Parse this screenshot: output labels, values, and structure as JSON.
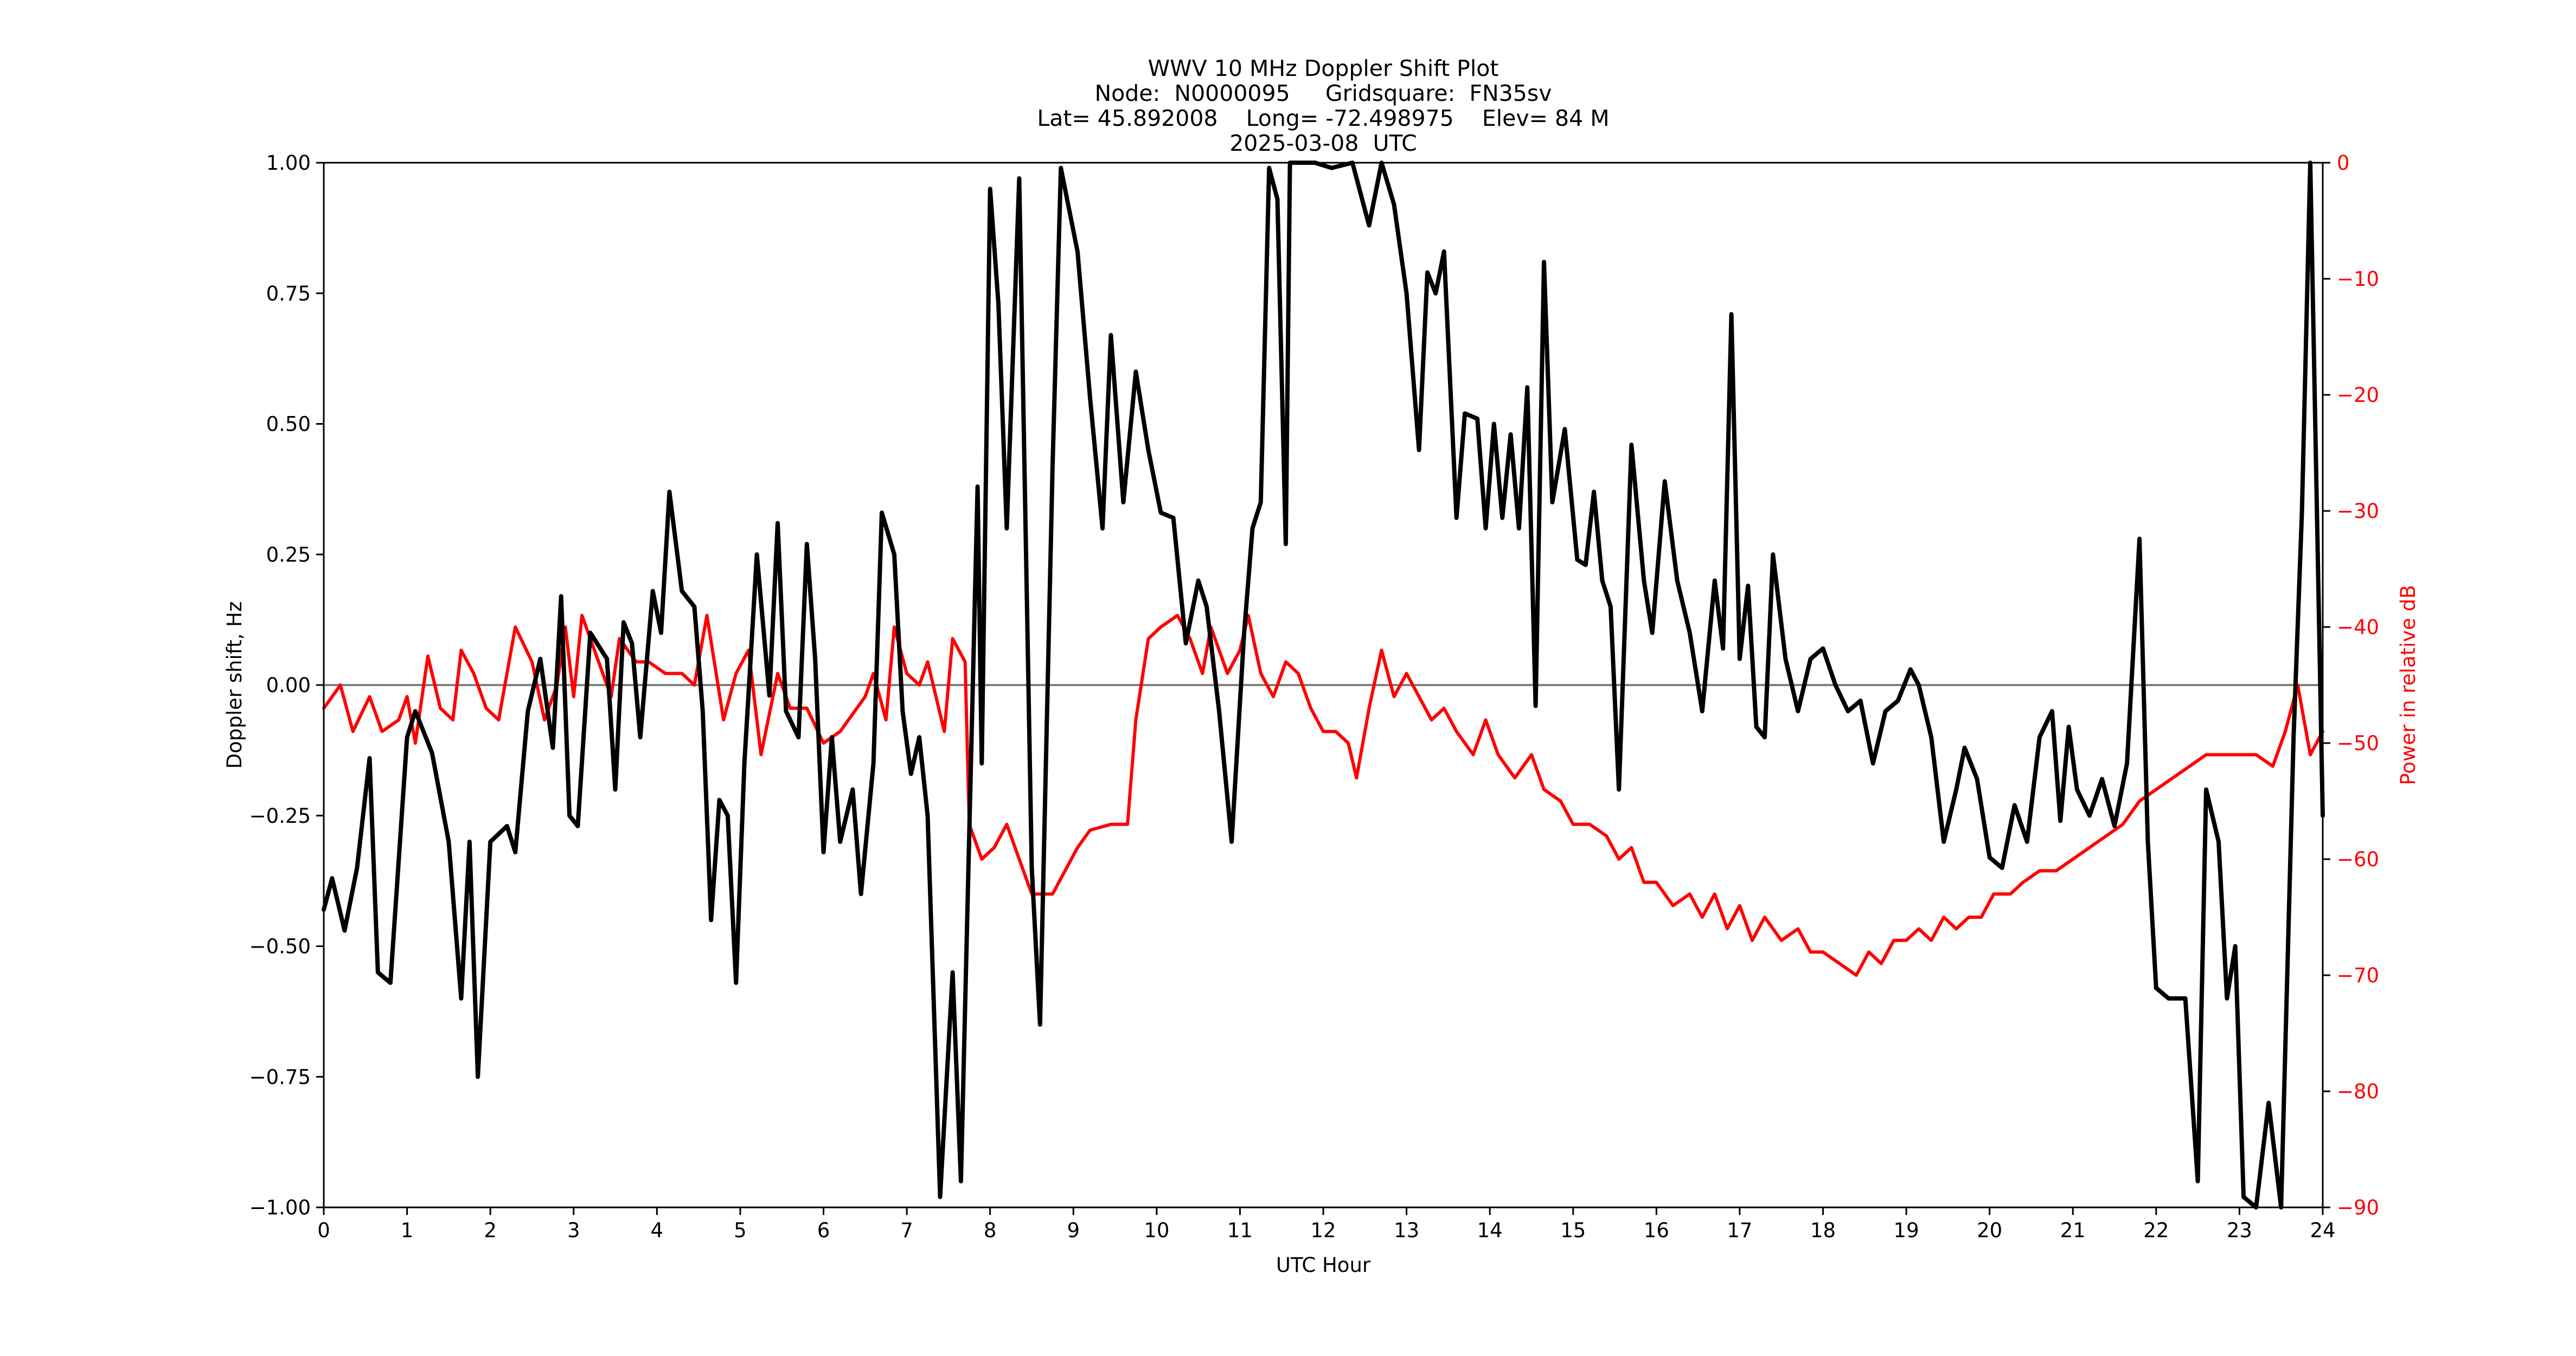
{
  "title": {
    "line1": "WWV 10 MHz Doppler Shift Plot",
    "line2": "Node:  N0000095     Gridsquare:  FN35sv",
    "line3": "Lat= 45.892008    Long= -72.498975    Elev= 84 M",
    "line4": "2025-03-08  UTC"
  },
  "axes": {
    "xlabel": "UTC Hour",
    "ylabel_left": "Doppler shift, Hz",
    "ylabel_right": "Power in relative dB",
    "x_ticks": [
      "0",
      "1",
      "2",
      "3",
      "4",
      "5",
      "6",
      "7",
      "8",
      "9",
      "10",
      "11",
      "12",
      "13",
      "14",
      "15",
      "16",
      "17",
      "18",
      "19",
      "20",
      "21",
      "22",
      "23",
      "24"
    ],
    "y_left_ticks": [
      "1.00",
      "0.75",
      "0.50",
      "0.25",
      "0.00",
      "−0.25",
      "−0.50",
      "−0.75",
      "−1.00"
    ],
    "y_right_ticks": [
      "0",
      "−10",
      "−20",
      "−30",
      "−40",
      "−50",
      "−60",
      "−70",
      "−80",
      "−90"
    ]
  },
  "colors": {
    "doppler": "#000000",
    "power": "#ff0000",
    "zero_line": "#808080",
    "right_axis_text": "#ff0000"
  },
  "chart_data": {
    "type": "line",
    "title": "WWV 10 MHz Doppler Shift Plot",
    "subtitle": "Node:  N0000095     Gridsquare:  FN35sv | Lat= 45.892008    Long= -72.498975    Elev= 84 M | 2025-03-08  UTC",
    "xlabel": "UTC Hour",
    "ylabel": "Doppler shift, Hz",
    "y2label": "Power in relative dB",
    "xlim": [
      0,
      24
    ],
    "ylim": [
      -1.0,
      1.0
    ],
    "y2lim": [
      -90,
      0
    ],
    "grid": false,
    "reference_line": {
      "y": 0.0,
      "color": "#808080"
    },
    "series": [
      {
        "name": "Doppler shift (Hz)",
        "axis": "left",
        "color": "#000000",
        "x": [
          0,
          0.1,
          0.25,
          0.4,
          0.55,
          0.65,
          0.8,
          1.0,
          1.1,
          1.3,
          1.5,
          1.65,
          1.75,
          1.85,
          2.0,
          2.2,
          2.3,
          2.45,
          2.6,
          2.75,
          2.85,
          2.95,
          3.05,
          3.2,
          3.4,
          3.5,
          3.6,
          3.7,
          3.8,
          3.95,
          4.05,
          4.15,
          4.3,
          4.45,
          4.55,
          4.65,
          4.75,
          4.85,
          4.95,
          5.05,
          5.2,
          5.35,
          5.45,
          5.55,
          5.7,
          5.8,
          5.9,
          6.0,
          6.1,
          6.2,
          6.35,
          6.45,
          6.6,
          6.7,
          6.85,
          6.95,
          7.05,
          7.15,
          7.25,
          7.4,
          7.55,
          7.65,
          7.85,
          7.9,
          8.0,
          8.1,
          8.2,
          8.35,
          8.5,
          8.6,
          8.75,
          8.85,
          9.05,
          9.2,
          9.35,
          9.45,
          9.6,
          9.75,
          9.9,
          10.05,
          10.2,
          10.35,
          10.5,
          10.6,
          10.75,
          10.9,
          11.05,
          11.15,
          11.25,
          11.35,
          11.45,
          11.55,
          11.6,
          11.9,
          12.1,
          12.35,
          12.55,
          12.7,
          12.85,
          13.0,
          13.15,
          13.25,
          13.35,
          13.45,
          13.6,
          13.7,
          13.85,
          13.95,
          14.05,
          14.15,
          14.25,
          14.35,
          14.45,
          14.55,
          14.65,
          14.75,
          14.9,
          15.05,
          15.15,
          15.25,
          15.35,
          15.45,
          15.55,
          15.7,
          15.85,
          15.95,
          16.1,
          16.25,
          16.4,
          16.55,
          16.7,
          16.8,
          16.9,
          17.0,
          17.1,
          17.2,
          17.3,
          17.4,
          17.55,
          17.7,
          17.85,
          18.0,
          18.15,
          18.3,
          18.45,
          18.6,
          18.75,
          18.9,
          19.05,
          19.15,
          19.3,
          19.45,
          19.6,
          19.7,
          19.85,
          20.0,
          20.15,
          20.3,
          20.45,
          20.6,
          20.75,
          20.85,
          20.95,
          21.05,
          21.2,
          21.35,
          21.5,
          21.65,
          21.8,
          21.9,
          22.0,
          22.15,
          22.35,
          22.5,
          22.6,
          22.75,
          22.85,
          22.95,
          23.05,
          23.2,
          23.35,
          23.5,
          23.65,
          23.75,
          23.85,
          24.0
        ],
        "values": [
          -0.43,
          -0.37,
          -0.47,
          -0.35,
          -0.14,
          -0.55,
          -0.57,
          -0.1,
          -0.05,
          -0.13,
          -0.3,
          -0.6,
          -0.3,
          -0.75,
          -0.3,
          -0.27,
          -0.32,
          -0.05,
          0.05,
          -0.12,
          0.17,
          -0.25,
          -0.27,
          0.1,
          0.05,
          -0.2,
          0.12,
          0.08,
          -0.1,
          0.18,
          0.1,
          0.37,
          0.18,
          0.15,
          -0.05,
          -0.45,
          -0.22,
          -0.25,
          -0.57,
          -0.15,
          0.25,
          -0.02,
          0.31,
          -0.05,
          -0.1,
          0.27,
          0.05,
          -0.32,
          -0.1,
          -0.3,
          -0.2,
          -0.4,
          -0.15,
          0.33,
          0.25,
          -0.05,
          -0.17,
          -0.1,
          -0.25,
          -0.98,
          -0.55,
          -0.95,
          0.38,
          -0.15,
          0.95,
          0.73,
          0.3,
          0.97,
          -0.35,
          -0.65,
          0.42,
          0.99,
          0.83,
          0.55,
          0.3,
          0.67,
          0.35,
          0.6,
          0.45,
          0.33,
          0.32,
          0.08,
          0.2,
          0.15,
          -0.05,
          -0.3,
          0.1,
          0.3,
          0.35,
          0.99,
          0.93,
          0.27,
          1.0,
          1.0,
          0.99,
          1.0,
          0.88,
          1.0,
          0.92,
          0.75,
          0.45,
          0.79,
          0.75,
          0.83,
          0.32,
          0.52,
          0.51,
          0.3,
          0.5,
          0.32,
          0.48,
          0.3,
          0.57,
          -0.04,
          0.81,
          0.35,
          0.49,
          0.24,
          0.23,
          0.37,
          0.2,
          0.15,
          -0.2,
          0.46,
          0.2,
          0.1,
          0.39,
          0.2,
          0.1,
          -0.05,
          0.2,
          0.07,
          0.71,
          0.05,
          0.19,
          -0.08,
          -0.1,
          0.25,
          0.05,
          -0.05,
          0.05,
          0.07,
          0.0,
          -0.05,
          -0.03,
          -0.15,
          -0.05,
          -0.03,
          0.03,
          0.0,
          -0.1,
          -0.3,
          -0.2,
          -0.12,
          -0.18,
          -0.33,
          -0.35,
          -0.23,
          -0.3,
          -0.1,
          -0.05,
          -0.26,
          -0.08,
          -0.2,
          -0.25,
          -0.18,
          -0.27,
          -0.15,
          0.28,
          -0.3,
          -0.58,
          -0.6,
          -0.6,
          -0.95,
          -0.2,
          -0.3,
          -0.6,
          -0.5,
          -0.98,
          -1.0,
          -0.8,
          -1.0,
          -0.1,
          0.33,
          1.0,
          -0.25
        ]
      },
      {
        "name": "Power (relative dB)",
        "axis": "right",
        "color": "#ff0000",
        "x": [
          0,
          0.2,
          0.35,
          0.55,
          0.7,
          0.9,
          1.0,
          1.1,
          1.25,
          1.4,
          1.55,
          1.65,
          1.8,
          1.95,
          2.1,
          2.3,
          2.5,
          2.65,
          2.8,
          2.9,
          3.0,
          3.1,
          3.3,
          3.45,
          3.55,
          3.75,
          3.9,
          4.1,
          4.3,
          4.45,
          4.6,
          4.8,
          4.95,
          5.1,
          5.25,
          5.45,
          5.6,
          5.8,
          6.0,
          6.2,
          6.5,
          6.6,
          6.75,
          6.85,
          7.0,
          7.15,
          7.25,
          7.45,
          7.55,
          7.7,
          7.75,
          7.9,
          8.05,
          8.2,
          8.35,
          8.5,
          8.75,
          8.9,
          9.05,
          9.2,
          9.45,
          9.65,
          9.75,
          9.9,
          10.05,
          10.25,
          10.4,
          10.55,
          10.65,
          10.85,
          11.0,
          11.1,
          11.25,
          11.4,
          11.55,
          11.7,
          11.85,
          12.0,
          12.15,
          12.3,
          12.4,
          12.55,
          12.7,
          12.85,
          13.0,
          13.15,
          13.3,
          13.45,
          13.6,
          13.8,
          13.95,
          14.1,
          14.3,
          14.5,
          14.65,
          14.85,
          15.0,
          15.2,
          15.4,
          15.55,
          15.7,
          15.85,
          16.0,
          16.2,
          16.4,
          16.55,
          16.7,
          16.85,
          17.0,
          17.15,
          17.3,
          17.5,
          17.7,
          17.85,
          18.0,
          18.2,
          18.4,
          18.55,
          18.7,
          18.85,
          19.0,
          19.15,
          19.3,
          19.45,
          19.6,
          19.75,
          19.9,
          20.05,
          20.25,
          20.4,
          20.6,
          20.8,
          21.0,
          21.2,
          21.4,
          21.6,
          21.8,
          22.0,
          22.2,
          22.4,
          22.6,
          22.8,
          23.0,
          23.2,
          23.4,
          23.55,
          23.7,
          23.85,
          24.0
        ],
        "values": [
          -47,
          -45,
          -49,
          -46,
          -49,
          -48,
          -46,
          -50,
          -42.5,
          -47,
          -48,
          -42,
          -44,
          -47,
          -48,
          -40,
          -43,
          -48,
          -45,
          -40,
          -46,
          -39,
          -43,
          -46,
          -41,
          -43,
          -43,
          -44,
          -44,
          -45,
          -39,
          -48,
          -44,
          -42,
          -51,
          -44,
          -47,
          -47,
          -50,
          -49,
          -46,
          -44,
          -48,
          -40,
          -44,
          -45,
          -43,
          -49,
          -41,
          -43,
          -57,
          -60,
          -59,
          -57,
          -60,
          -63,
          -63,
          -61,
          -59,
          -57.5,
          -57,
          -57,
          -48,
          -41,
          -40,
          -39,
          -41,
          -44,
          -40,
          -44,
          -42,
          -39,
          -44,
          -46,
          -43,
          -44,
          -47,
          -49,
          -49,
          -50,
          -53,
          -47,
          -42,
          -46,
          -44,
          -46,
          -48,
          -47,
          -49,
          -51,
          -48,
          -51,
          -53,
          -51,
          -54,
          -55,
          -57,
          -57,
          -58,
          -60,
          -59,
          -62,
          -62,
          -64,
          -63,
          -65,
          -63,
          -66,
          -64,
          -67,
          -65,
          -67,
          -66,
          -68,
          -68,
          -69,
          -70,
          -68,
          -69,
          -67,
          -67,
          -66,
          -67,
          -65,
          -66,
          -65,
          -65,
          -63,
          -63,
          -62,
          -61,
          -61,
          -60,
          -59,
          -58,
          -57,
          -55,
          -54,
          -53,
          -52,
          -51,
          -51,
          -51,
          -51,
          -52,
          -49,
          -45,
          -51,
          -49
        ]
      }
    ]
  }
}
